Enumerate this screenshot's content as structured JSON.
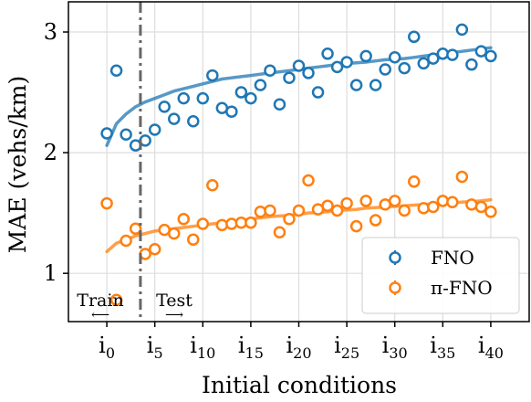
{
  "chart_data": {
    "type": "scatter",
    "title": "",
    "xlabel": "Initial conditions",
    "ylabel": "MAE (vehs/km)",
    "xlim": [
      -4,
      44
    ],
    "ylim": [
      0.6,
      3.25
    ],
    "x_ticks": [
      {
        "value": 0,
        "base": "i",
        "sub": "0"
      },
      {
        "value": 5,
        "base": "i",
        "sub": "5"
      },
      {
        "value": 10,
        "base": "i",
        "sub": "10"
      },
      {
        "value": 15,
        "base": "i",
        "sub": "15"
      },
      {
        "value": 20,
        "base": "i",
        "sub": "20"
      },
      {
        "value": 25,
        "base": "i",
        "sub": "25"
      },
      {
        "value": 30,
        "base": "i",
        "sub": "30"
      },
      {
        "value": 35,
        "base": "i",
        "sub": "35"
      },
      {
        "value": 40,
        "base": "i",
        "sub": "40"
      }
    ],
    "y_ticks": [
      1,
      2,
      3
    ],
    "grid": true,
    "legend_position": "lower-right",
    "split_line_x": 3.5,
    "annotations": {
      "train_label": "Train",
      "test_label": "Test",
      "train_arrow": "⟵",
      "test_arrow": "⟶"
    },
    "series": [
      {
        "name": "FNO",
        "color": "#1f77b4",
        "x": [
          0,
          1,
          2,
          3,
          4,
          5,
          6,
          7,
          8,
          9,
          10,
          11,
          12,
          13,
          14,
          15,
          16,
          17,
          18,
          19,
          20,
          21,
          22,
          23,
          24,
          25,
          26,
          27,
          28,
          29,
          30,
          31,
          32,
          33,
          34,
          35,
          36,
          37,
          38,
          39,
          40
        ],
        "values": [
          2.16,
          2.68,
          2.15,
          2.06,
          2.1,
          2.19,
          2.38,
          2.28,
          2.45,
          2.26,
          2.45,
          2.64,
          2.37,
          2.34,
          2.5,
          2.45,
          2.56,
          2.68,
          2.4,
          2.62,
          2.72,
          2.66,
          2.5,
          2.82,
          2.71,
          2.75,
          2.56,
          2.8,
          2.56,
          2.69,
          2.79,
          2.7,
          2.96,
          2.74,
          2.78,
          2.82,
          2.81,
          3.02,
          2.73,
          2.84,
          2.8
        ],
        "fit": [
          2.06,
          2.24,
          2.32,
          2.38,
          2.42,
          2.45,
          2.48,
          2.51,
          2.53,
          2.55,
          2.57,
          2.59,
          2.61,
          2.62,
          2.63,
          2.64,
          2.65,
          2.66,
          2.67,
          2.68,
          2.69,
          2.7,
          2.71,
          2.72,
          2.73,
          2.74,
          2.745,
          2.75,
          2.76,
          2.77,
          2.775,
          2.78,
          2.79,
          2.8,
          2.81,
          2.82,
          2.83,
          2.84,
          2.85,
          2.86,
          2.87
        ]
      },
      {
        "name": "π-FNO",
        "color": "#ff7f0e",
        "x": [
          0,
          1,
          2,
          3,
          4,
          5,
          6,
          7,
          8,
          9,
          10,
          11,
          12,
          13,
          14,
          15,
          16,
          17,
          18,
          19,
          20,
          21,
          22,
          23,
          24,
          25,
          26,
          27,
          28,
          29,
          30,
          31,
          32,
          33,
          34,
          35,
          36,
          37,
          38,
          39,
          40
        ],
        "values": [
          1.58,
          0.78,
          1.27,
          1.37,
          1.16,
          1.2,
          1.36,
          1.33,
          1.45,
          1.28,
          1.41,
          1.73,
          1.4,
          1.41,
          1.42,
          1.42,
          1.51,
          1.52,
          1.34,
          1.45,
          1.52,
          1.77,
          1.53,
          1.56,
          1.52,
          1.58,
          1.39,
          1.6,
          1.44,
          1.57,
          1.6,
          1.52,
          1.76,
          1.54,
          1.55,
          1.6,
          1.59,
          1.8,
          1.57,
          1.55,
          1.51
        ],
        "errors": [
          0,
          0,
          0,
          0.03,
          0,
          0,
          0,
          0,
          0,
          0,
          0,
          0.02,
          0,
          0,
          0,
          0,
          0.03,
          0,
          0,
          0,
          0,
          0.05,
          0,
          0.04,
          0,
          0.03,
          0,
          0,
          0,
          0.05,
          0.03,
          0,
          0.05,
          0,
          0,
          0.05,
          0.05,
          0.05,
          0,
          0,
          0
        ],
        "fit": [
          1.18,
          1.25,
          1.28,
          1.31,
          1.33,
          1.35,
          1.36,
          1.37,
          1.38,
          1.39,
          1.4,
          1.41,
          1.42,
          1.43,
          1.44,
          1.45,
          1.46,
          1.47,
          1.475,
          1.48,
          1.49,
          1.5,
          1.505,
          1.51,
          1.52,
          1.525,
          1.53,
          1.54,
          1.545,
          1.55,
          1.555,
          1.56,
          1.565,
          1.57,
          1.575,
          1.58,
          1.585,
          1.59,
          1.595,
          1.6,
          1.61
        ]
      }
    ]
  }
}
